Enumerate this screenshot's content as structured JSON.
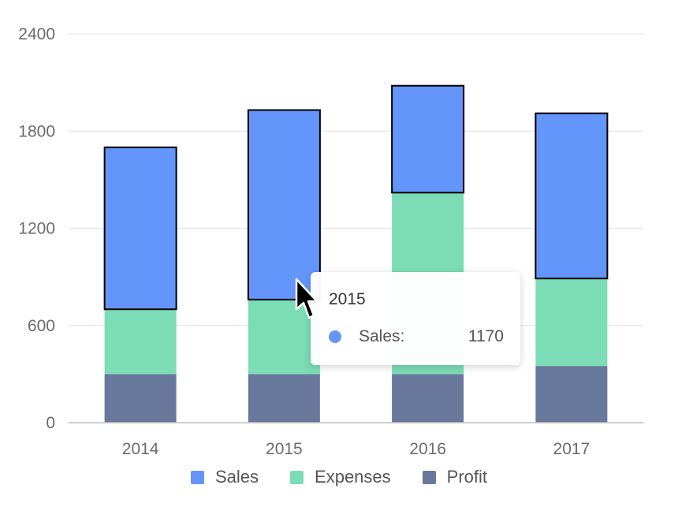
{
  "chart_data": {
    "type": "bar",
    "stacked": true,
    "categories": [
      "2014",
      "2015",
      "2016",
      "2017"
    ],
    "series": [
      {
        "name": "Profit",
        "values": [
          300,
          300,
          300,
          350
        ],
        "color": "#68789b"
      },
      {
        "name": "Expenses",
        "values": [
          400,
          460,
          1120,
          540
        ],
        "color": "#7bdcb5"
      },
      {
        "name": "Sales",
        "values": [
          1000,
          1170,
          660,
          1020
        ],
        "color": "#6395fa"
      }
    ],
    "ylim": [
      0,
      2400
    ],
    "yticks": [
      "0",
      "600",
      "1200",
      "1800",
      "2400"
    ],
    "grid": true,
    "legend_position": "bottom",
    "highlighted_series": "Sales"
  },
  "legend": [
    {
      "label": "Sales",
      "color": "#6395fa"
    },
    {
      "label": "Expenses",
      "color": "#7bdcb5"
    },
    {
      "label": "Profit",
      "color": "#68789b"
    }
  ],
  "tooltip": {
    "title": "2015",
    "name": "Sales:",
    "value": "1170",
    "color": "#6395fa"
  }
}
